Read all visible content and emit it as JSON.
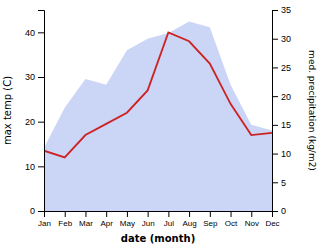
{
  "chart_data": {
    "type": "line",
    "categories": [
      "Jan",
      "Feb",
      "Mar",
      "Apr",
      "May",
      "Jun",
      "Jul",
      "Aug",
      "Sep",
      "Oct",
      "Nov",
      "Dec"
    ],
    "series": [
      {
        "type": "area",
        "color": "#c5d0f5",
        "axis": "y2",
        "values": [
          11,
          18,
          23,
          22,
          28,
          30,
          31,
          33,
          32,
          22,
          15,
          14
        ]
      },
      {
        "type": "line",
        "color": "#cc2222",
        "values": [
          13.5,
          12.0,
          17.0,
          19.5,
          22.0,
          27.0,
          40.0,
          38.0,
          33.0,
          24.0,
          17.0,
          17.5
        ]
      }
    ],
    "xlabel": "date (month)",
    "ylabel": "max temp (C)",
    "y2label": "med. precipitation (kg/m2)",
    "ylim": [
      0,
      45
    ],
    "yticks": [
      0,
      10,
      20,
      30,
      40
    ],
    "y2lim": [
      0,
      35
    ],
    "y2ticks": [
      0,
      5,
      10,
      15,
      20,
      25,
      30,
      35
    ],
    "grid": false
  }
}
